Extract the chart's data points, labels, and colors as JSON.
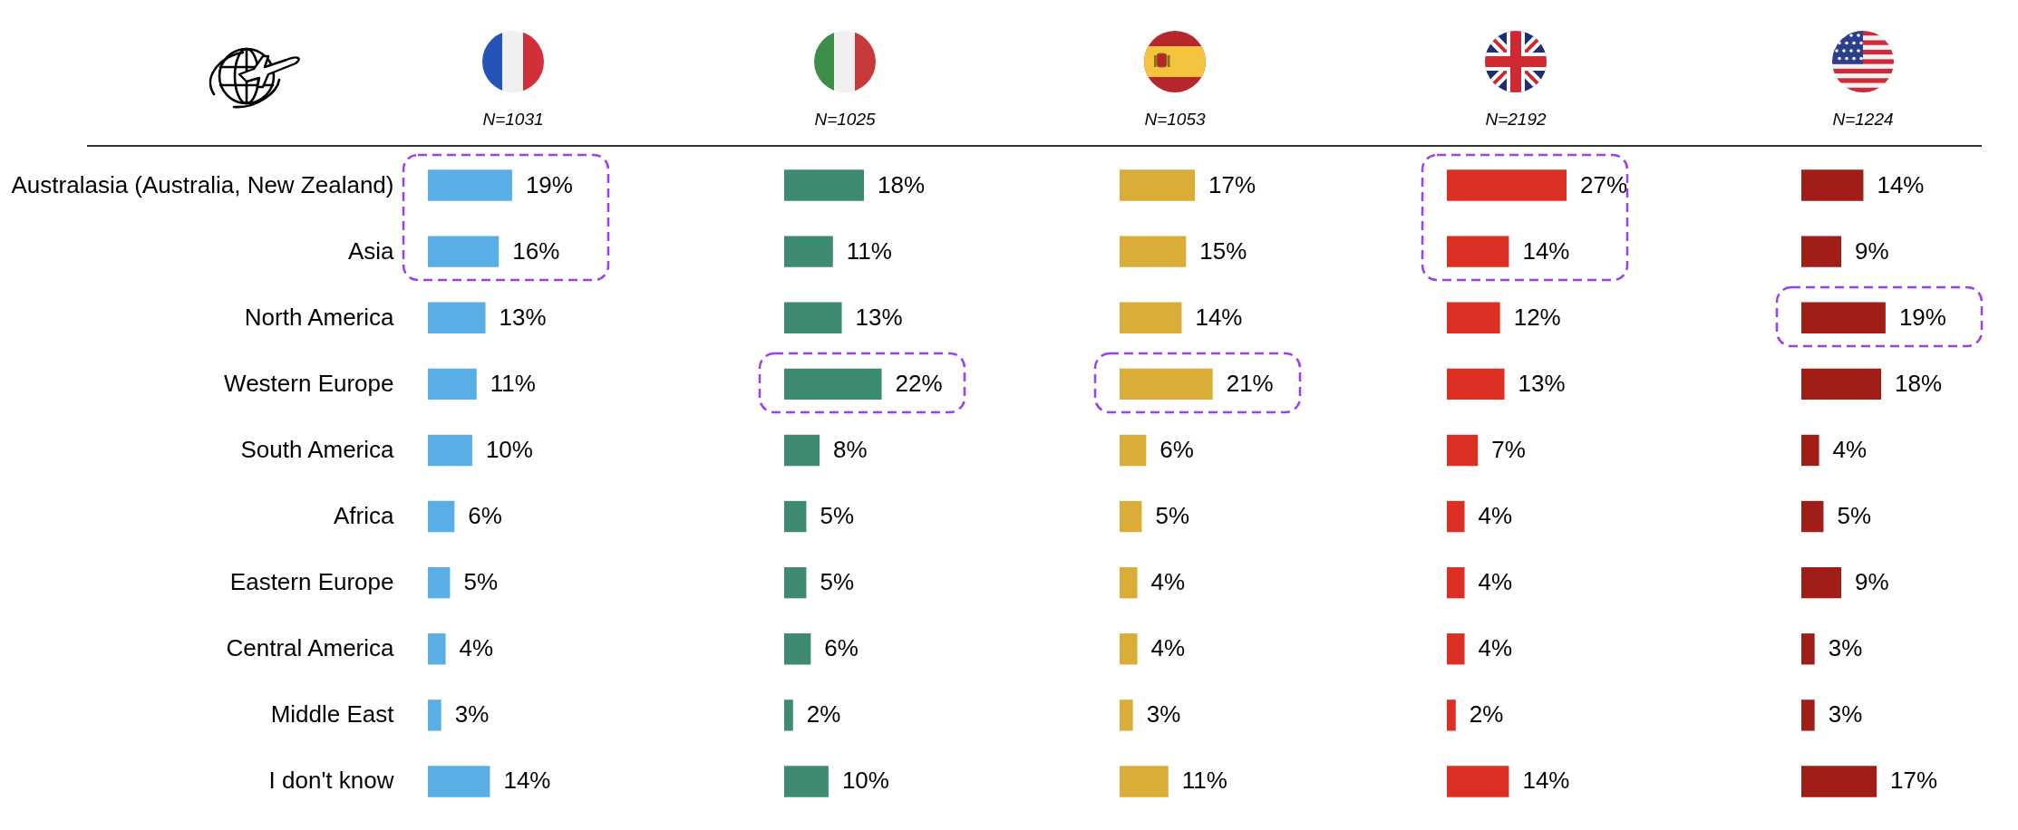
{
  "chart_data": [
    {
      "type": "bar",
      "orientation": "horizontal",
      "title": "N=1031",
      "categories": [
        "Australasia (Australia, New Zealand)",
        "Asia",
        "North America",
        "Western Europe",
        "South America",
        "Africa",
        "Eastern Europe",
        "Central America",
        "Middle East",
        "I don't know"
      ],
      "values": [
        19,
        16,
        13,
        11,
        10,
        6,
        5,
        4,
        3,
        14
      ],
      "value_labels": [
        "19%",
        "16%",
        "13%",
        "11%",
        "10%",
        "6%",
        "5%",
        "4%",
        "3%",
        "14%"
      ],
      "color": "#5aaee6",
      "tick_labels": "y"
    },
    {
      "type": "bar",
      "orientation": "horizontal",
      "title": "N=1025",
      "categories": [
        "Australasia (Australia, New Zealand)",
        "Asia",
        "North America",
        "Western Europe",
        "South America",
        "Africa",
        "Eastern Europe",
        "Central America",
        "Middle East",
        "I don't know"
      ],
      "values": [
        18,
        11,
        13,
        22,
        8,
        5,
        5,
        6,
        2,
        10
      ],
      "value_labels": [
        "18%",
        "11%",
        "13%",
        "22%",
        "8%",
        "5%",
        "5%",
        "6%",
        "2%",
        "10%"
      ],
      "color": "#3d8b73",
      "tick_labels": false
    },
    {
      "type": "bar",
      "orientation": "horizontal",
      "title": "N=1053",
      "categories": [
        "Australasia (Australia, New Zealand)",
        "Asia",
        "North America",
        "Western Europe",
        "South America",
        "Africa",
        "Eastern Europe",
        "Central America",
        "Middle East",
        "I don't know"
      ],
      "values": [
        17,
        15,
        14,
        21,
        6,
        5,
        4,
        4,
        3,
        11
      ],
      "value_labels": [
        "17%",
        "15%",
        "14%",
        "21%",
        "6%",
        "5%",
        "4%",
        "4%",
        "3%",
        "11%"
      ],
      "color": "#d9ad38",
      "tick_labels": false
    },
    {
      "type": "bar",
      "orientation": "horizontal",
      "title": "N=2192",
      "categories": [
        "Australasia (Australia, New Zealand)",
        "Asia",
        "North America",
        "Western Europe",
        "South America",
        "Africa",
        "Eastern Europe",
        "Central America",
        "Middle East",
        "I don't know"
      ],
      "values": [
        27,
        14,
        12,
        13,
        7,
        4,
        4,
        4,
        2,
        14
      ],
      "value_labels": [
        "27%",
        "14%",
        "12%",
        "13%",
        "7%",
        "4%",
        "4%",
        "4%",
        "2%",
        "14%"
      ],
      "color": "#dd3024",
      "tick_labels": false
    },
    {
      "type": "bar",
      "orientation": "horizontal",
      "title": "N=1224",
      "categories": [
        "Australasia (Australia, New Zealand)",
        "Asia",
        "North America",
        "Western Europe",
        "South America",
        "Africa",
        "Eastern Europe",
        "Central America",
        "Middle East",
        "I don't know"
      ],
      "values": [
        14,
        9,
        19,
        18,
        4,
        5,
        9,
        3,
        3,
        17
      ],
      "value_labels": [
        "14%",
        "9%",
        "19%",
        "18%",
        "4%",
        "5%",
        "9%",
        "3%",
        "3%",
        "17%"
      ],
      "color": "#a11d17",
      "tick_labels": false
    }
  ]
}
